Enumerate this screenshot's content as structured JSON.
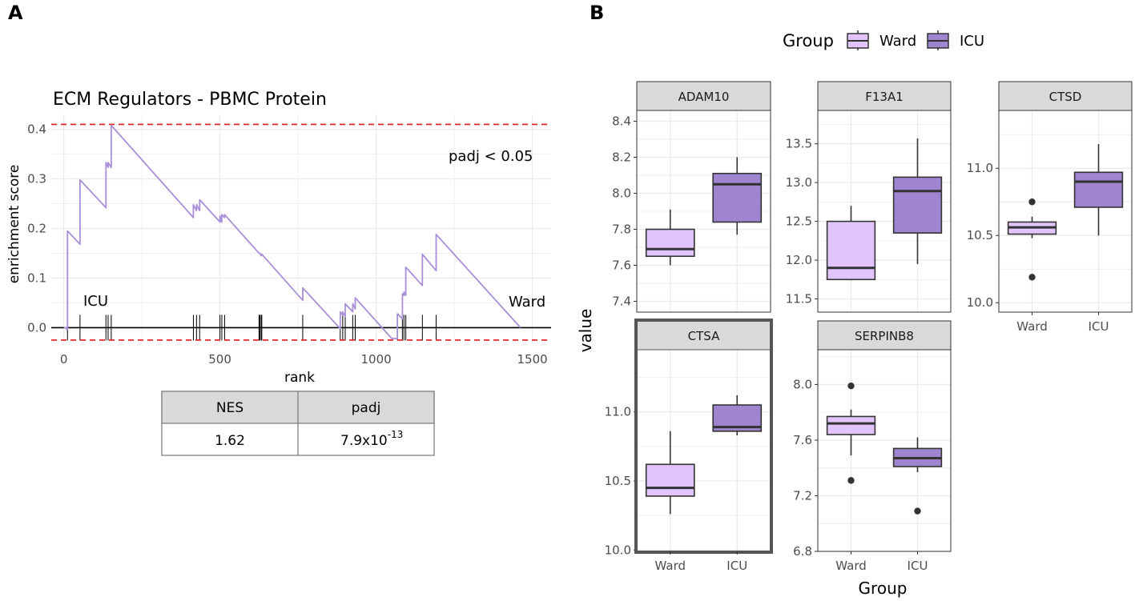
{
  "panels": {
    "a_label": "A",
    "b_label": "B"
  },
  "colors": {
    "ward_fill": "#e1c4fb",
    "icu_fill": "#9f84d0",
    "curve": "#a98fd8",
    "threshold": "#e31a1c",
    "grid": "#ebebeb",
    "strip": "#d9d9d9"
  },
  "gsea": {
    "title": "ECM Regulators - PBMC Protein",
    "annotation": "padj < 0.05",
    "left_label": "ICU",
    "right_label": "Ward",
    "table": {
      "headers": [
        "NES",
        "padj"
      ],
      "nes": "1.62",
      "padj_base": "7.9x10",
      "padj_exp": "-13"
    }
  },
  "facets": {
    "legend_title": "Group",
    "x_title": "Group",
    "y_title": "value",
    "groups": [
      "Ward",
      "ICU"
    ]
  },
  "chart_data": [
    {
      "type": "line",
      "title": "ECM Regulators - PBMC Protein",
      "xlabel": "rank",
      "ylabel": "enrichment score",
      "xlim": [
        -40,
        1560
      ],
      "ylim": [
        -0.03,
        0.43
      ],
      "xticks": [
        0,
        500,
        1000,
        1500
      ],
      "yticks": [
        0.0,
        0.1,
        0.2,
        0.3,
        0.4
      ],
      "thresholds": [
        0.41,
        -0.025
      ],
      "series": [
        {
          "name": "running enrichment score",
          "x": [
            0,
            8,
            10,
            12,
            12,
            52,
            52,
            135,
            135,
            142,
            142,
            152,
            152,
            415,
            415,
            425,
            425,
            435,
            435,
            500,
            500,
            506,
            506,
            515,
            515,
            625,
            628,
            632,
            634,
            765,
            765,
            885,
            885,
            893,
            893,
            901,
            901,
            925,
            925,
            933,
            933,
            1050,
            1068,
            1068,
            1084,
            1084,
            1089,
            1089,
            1095,
            1095,
            1148,
            1148,
            1192,
            1192,
            1462
          ],
          "y": [
            0.0,
            0.0,
            -0.005,
            0.0,
            0.195,
            0.168,
            0.298,
            0.242,
            0.333,
            0.323,
            0.333,
            0.323,
            0.408,
            0.222,
            0.248,
            0.236,
            0.248,
            0.236,
            0.258,
            0.213,
            0.225,
            0.213,
            0.228,
            0.222,
            0.228,
            0.15,
            0.15,
            0.145,
            0.148,
            0.055,
            0.08,
            -0.002,
            0.032,
            0.025,
            0.032,
            0.022,
            0.048,
            0.032,
            0.048,
            0.038,
            0.06,
            -0.022,
            -0.022,
            0.028,
            0.018,
            0.068,
            0.065,
            0.072,
            0.065,
            0.122,
            0.085,
            0.148,
            0.115,
            0.188,
            0.0
          ]
        }
      ],
      "rug": [
        12,
        52,
        135,
        142,
        152,
        415,
        425,
        435,
        500,
        506,
        515,
        625,
        628,
        632,
        634,
        765,
        885,
        893,
        901,
        925,
        933,
        1068,
        1084,
        1089,
        1095,
        1148,
        1192
      ]
    },
    {
      "type": "box",
      "facet": "ADAM10",
      "ylim": [
        7.34,
        8.46
      ],
      "yticks": [
        "7.4",
        "7.6",
        "7.8",
        "8.0",
        "8.2",
        "8.4"
      ],
      "categories": [
        "Ward",
        "ICU"
      ],
      "boxes": [
        {
          "group": "Ward",
          "low": 7.6,
          "q1": 7.65,
          "median": 7.69,
          "q3": 7.8,
          "high": 7.91,
          "outliers": []
        },
        {
          "group": "ICU",
          "low": 7.77,
          "q1": 7.84,
          "median": 8.05,
          "q3": 8.11,
          "high": 8.2,
          "outliers": []
        }
      ]
    },
    {
      "type": "box",
      "facet": "F13A1",
      "ylim": [
        11.33,
        13.93
      ],
      "yticks": [
        "11.5",
        "12.0",
        "12.5",
        "13.0",
        "13.5"
      ],
      "categories": [
        "Ward",
        "ICU"
      ],
      "boxes": [
        {
          "group": "Ward",
          "low": 11.74,
          "q1": 11.75,
          "median": 11.9,
          "q3": 12.5,
          "high": 12.7,
          "outliers": []
        },
        {
          "group": "ICU",
          "low": 11.95,
          "q1": 12.35,
          "median": 12.89,
          "q3": 13.07,
          "high": 13.57,
          "outliers": []
        }
      ]
    },
    {
      "type": "box",
      "facet": "CTSD",
      "ylim": [
        9.93,
        11.43
      ],
      "yticks": [
        "10.0",
        "10.5",
        "11.0"
      ],
      "categories": [
        "Ward",
        "ICU"
      ],
      "boxes": [
        {
          "group": "Ward",
          "low": 10.48,
          "q1": 10.51,
          "median": 10.56,
          "q3": 10.6,
          "high": 10.64,
          "outliers": [
            10.75,
            10.19
          ]
        },
        {
          "group": "ICU",
          "low": 10.5,
          "q1": 10.71,
          "median": 10.9,
          "q3": 10.97,
          "high": 11.18,
          "outliers": []
        }
      ]
    },
    {
      "type": "box",
      "facet": "CTSA",
      "highlighted": true,
      "ylim": [
        9.99,
        11.45
      ],
      "yticks": [
        "10.0",
        "10.5",
        "11.0"
      ],
      "categories": [
        "Ward",
        "ICU"
      ],
      "boxes": [
        {
          "group": "Ward",
          "low": 10.26,
          "q1": 10.39,
          "median": 10.45,
          "q3": 10.62,
          "high": 10.86,
          "outliers": []
        },
        {
          "group": "ICU",
          "low": 10.83,
          "q1": 10.86,
          "median": 10.89,
          "q3": 11.05,
          "high": 11.12,
          "outliers": []
        }
      ]
    },
    {
      "type": "box",
      "facet": "SERPINB8",
      "ylim": [
        6.8,
        8.25
      ],
      "yticks": [
        "6.8",
        "7.2",
        "7.6",
        "8.0"
      ],
      "categories": [
        "Ward",
        "ICU"
      ],
      "boxes": [
        {
          "group": "Ward",
          "low": 7.49,
          "q1": 7.64,
          "median": 7.72,
          "q3": 7.77,
          "high": 7.82,
          "outliers": [
            7.99,
            7.31
          ]
        },
        {
          "group": "ICU",
          "low": 7.37,
          "q1": 7.41,
          "median": 7.47,
          "q3": 7.54,
          "high": 7.62,
          "outliers": [
            7.09
          ]
        }
      ]
    }
  ]
}
